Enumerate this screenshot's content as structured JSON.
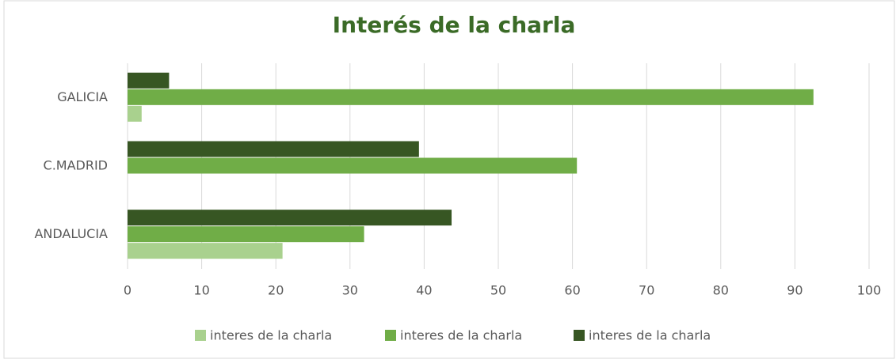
{
  "chart_data": {
    "type": "bar",
    "orientation": "horizontal",
    "title": "Interés de la charla",
    "categories": [
      "ANDALUCIA",
      "C.MADRID",
      "GALICIA"
    ],
    "series": [
      {
        "name": "interes de la charla",
        "color": "#a9d18e",
        "values": [
          20.9,
          null,
          1.9
        ]
      },
      {
        "name": "interes de la charla",
        "color": "#70ad47",
        "values": [
          31.9,
          60.6,
          92.5
        ]
      },
      {
        "name": "interes de la charla",
        "color": "#375623",
        "values": [
          43.7,
          39.3,
          5.6
        ]
      }
    ],
    "xlim": [
      0,
      100
    ],
    "xticks": [
      0,
      10,
      20,
      30,
      40,
      50,
      60,
      70,
      80,
      90,
      100
    ],
    "grid": true,
    "legend": "bottom"
  }
}
